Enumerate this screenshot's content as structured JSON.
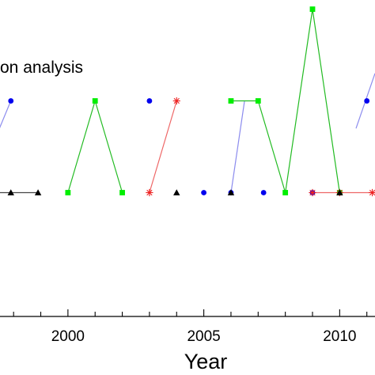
{
  "chart_data": {
    "type": "line",
    "title": "on analysis",
    "xlabel": "Year",
    "ylabel": "",
    "xlim": [
      1997.5,
      2011.3
    ],
    "ylim": [
      -0.35,
      3.1
    ],
    "x_ticks": [
      2000,
      2005,
      2010
    ],
    "grid": false,
    "series": [
      {
        "color": "#0000ee",
        "line_color": "#8c8cee",
        "marker": "circle",
        "segments": [
          [
            [
              1997.2,
              1.5
            ],
            [
              1997.9,
              2
            ]
          ],
          [
            [
              2006,
              1
            ],
            [
              2006.5,
              2
            ]
          ],
          [
            [
              2010.6,
              1.7
            ],
            [
              2011.3,
              2.3
            ]
          ]
        ],
        "points": [
          [
            1997.9,
            2
          ],
          [
            2003,
            2
          ],
          [
            2005,
            1
          ],
          [
            2006,
            1
          ],
          [
            2007.2,
            1
          ],
          [
            2009,
            1
          ],
          [
            2010,
            1
          ],
          [
            2011,
            2
          ]
        ]
      },
      {
        "color": "#00ee00",
        "line_color": "#22bb22",
        "marker": "square",
        "segments": [
          [
            [
              2000,
              1
            ],
            [
              2001,
              2
            ],
            [
              2002,
              1
            ]
          ],
          [
            [
              2006,
              2
            ],
            [
              2007,
              2
            ],
            [
              2008,
              1
            ],
            [
              2009,
              3
            ],
            [
              2010,
              1
            ]
          ]
        ],
        "points": [
          [
            2000,
            1
          ],
          [
            2001,
            2
          ],
          [
            2002,
            1
          ],
          [
            2006,
            2
          ],
          [
            2007,
            2
          ],
          [
            2008,
            1
          ],
          [
            2009,
            3
          ],
          [
            2010,
            1
          ]
        ]
      },
      {
        "color": "#ee2222",
        "line_color": "#ee6666",
        "marker": "asterisk",
        "segments": [
          [
            [
              2003,
              1
            ],
            [
              2004,
              2
            ]
          ],
          [
            [
              2009,
              1
            ],
            [
              2011.3,
              1
            ]
          ]
        ],
        "points": [
          [
            2003,
            1
          ],
          [
            2004,
            2
          ],
          [
            2009,
            1
          ],
          [
            2010,
            1
          ],
          [
            2011.2,
            1
          ]
        ]
      },
      {
        "color": "#000000",
        "line_color": "#444444",
        "marker": "triangle",
        "segments": [
          [
            [
              1997.2,
              1
            ],
            [
              1998.9,
              1
            ]
          ]
        ],
        "points": [
          [
            1997.9,
            1
          ],
          [
            1998.9,
            1
          ],
          [
            2004,
            1
          ],
          [
            2006,
            1
          ],
          [
            2010,
            1
          ]
        ]
      }
    ]
  }
}
